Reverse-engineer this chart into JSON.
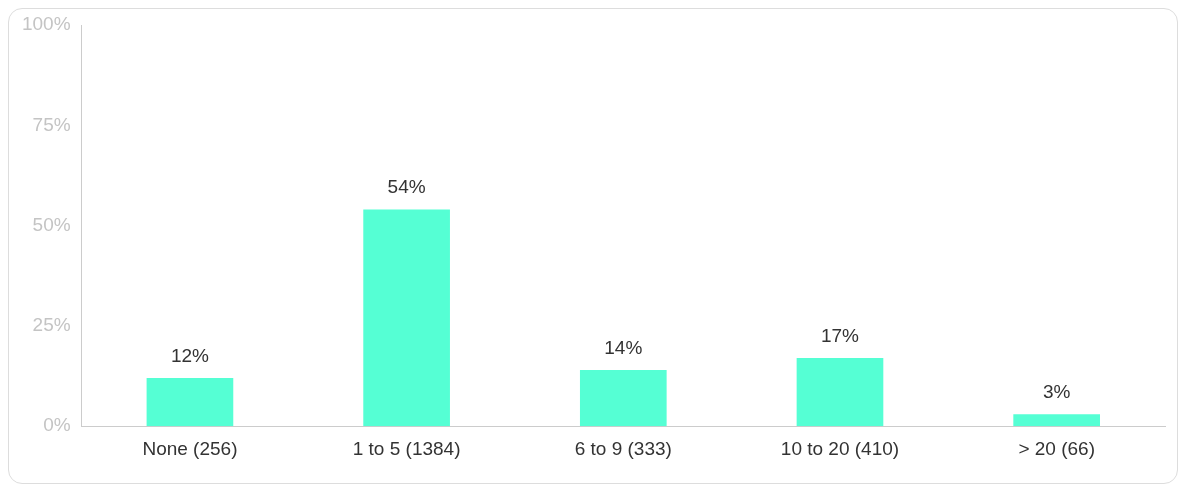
{
  "chart_data": {
    "type": "bar",
    "categories": [
      "None (256)",
      "1 to 5 (1384)",
      "6 to 9 (333)",
      "10 to 20 (410)",
      "> 20 (66)"
    ],
    "values": [
      12,
      54,
      14,
      17,
      3
    ],
    "value_labels": [
      "12%",
      "54%",
      "14%",
      "17%",
      "3%"
    ],
    "color": "#55ffd4",
    "ylim": [
      0,
      100
    ],
    "yticks": [
      {
        "value": 0,
        "label": "0%"
      },
      {
        "value": 25,
        "label": "25%"
      },
      {
        "value": 50,
        "label": "50%"
      },
      {
        "value": 75,
        "label": "75%"
      },
      {
        "value": 100,
        "label": "100%"
      }
    ],
    "grid": false,
    "legend": false
  }
}
